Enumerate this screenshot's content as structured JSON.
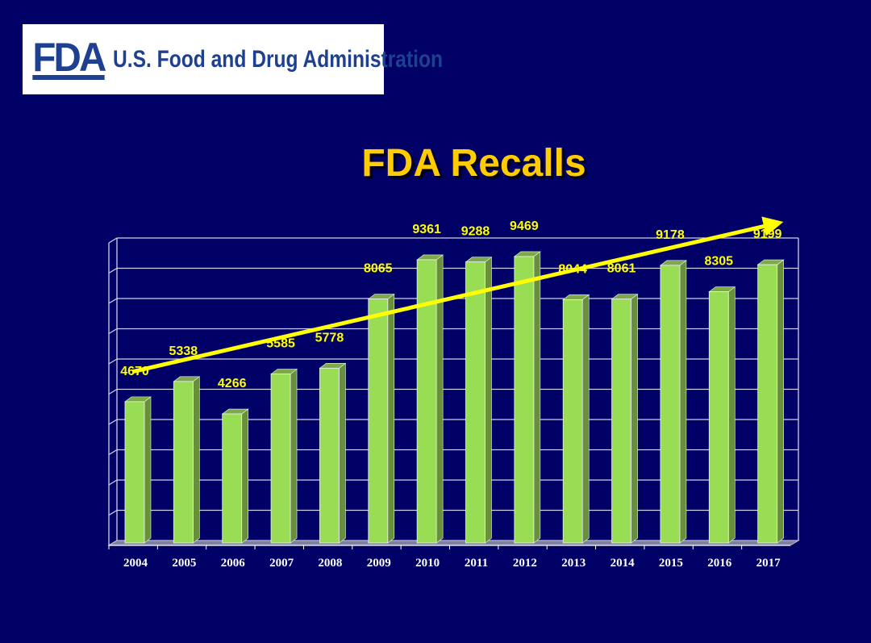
{
  "logo": {
    "mark": "FDA",
    "text": "U.S. Food and Drug Administration"
  },
  "title": "FDA Recalls",
  "colors": {
    "background": "#000066",
    "bar": "#99dd55",
    "bar_side": "#6a8f3a",
    "labels": "#ffff00",
    "trend": "#ffff00",
    "title": "#ffcc00"
  },
  "chart_data": {
    "type": "bar",
    "style": "3d-column",
    "title": "FDA Recalls",
    "categories": [
      "2004",
      "2005",
      "2006",
      "2007",
      "2008",
      "2009",
      "2010",
      "2011",
      "2012",
      "2013",
      "2014",
      "2015",
      "2016",
      "2017"
    ],
    "values": [
      4670,
      5338,
      4266,
      5585,
      5778,
      8065,
      9361,
      9288,
      9469,
      8044,
      8061,
      9178,
      8305,
      9199
    ],
    "ylim": [
      0,
      10000
    ],
    "y_tick_labels_shown": false,
    "grid": true,
    "trend_line": {
      "type": "linear-arrow",
      "color": "#ffff00"
    },
    "xlabel": "",
    "ylabel": ""
  }
}
